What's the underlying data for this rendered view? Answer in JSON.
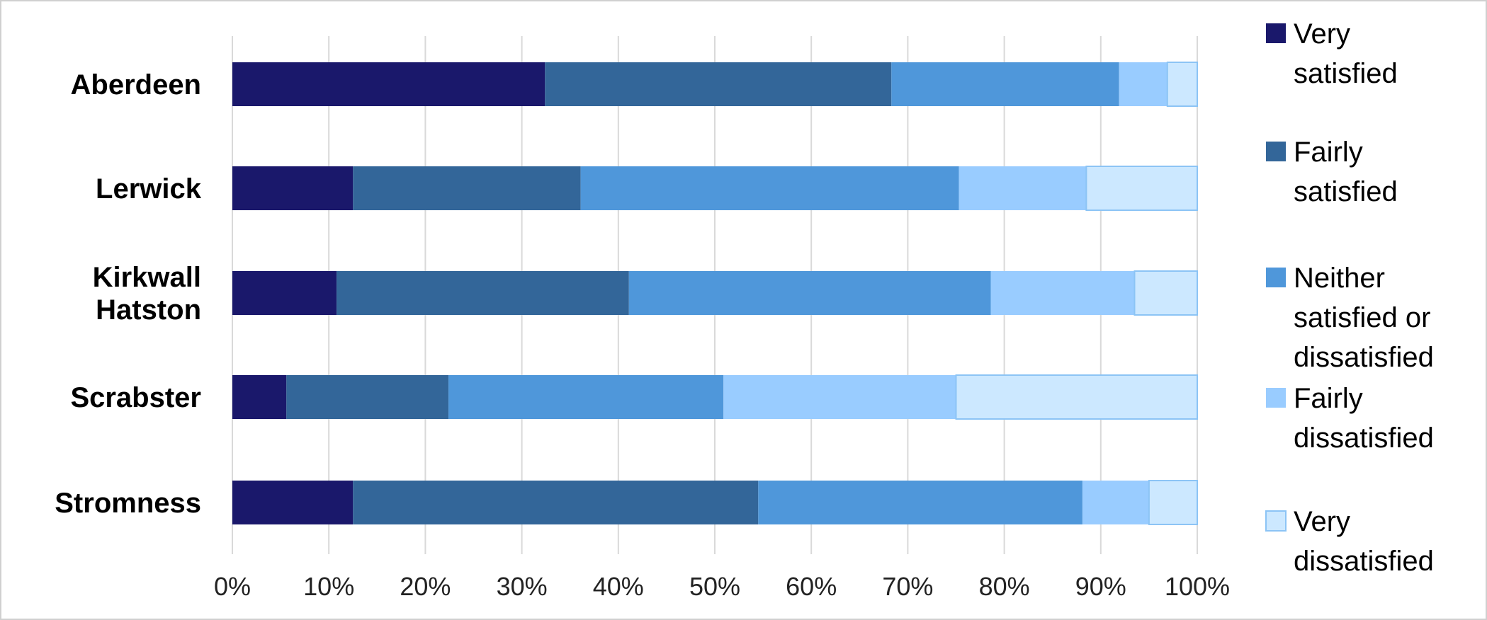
{
  "chart_data": {
    "type": "bar",
    "orientation": "horizontal",
    "stacked": "percent",
    "categories": [
      "Aberdeen",
      "Lerwick",
      "Kirkwall Hatston",
      "Scrabster",
      "Stromness"
    ],
    "category_lines": [
      [
        "Aberdeen"
      ],
      [
        "Lerwick"
      ],
      [
        "Kirkwall",
        "Hatston"
      ],
      [
        "Scrabster"
      ],
      [
        "Stromness"
      ]
    ],
    "series": [
      {
        "name": "Very satisfied",
        "legend_lines": [
          "Very",
          "satisfied"
        ],
        "color": "#1a186b",
        "values": [
          32.4,
          12.5,
          10.8,
          5.6,
          12.5
        ]
      },
      {
        "name": "Fairly satisfied",
        "legend_lines": [
          "Fairly",
          "satisfied"
        ],
        "color": "#336699",
        "values": [
          35.9,
          23.6,
          30.3,
          16.8,
          42.0
        ]
      },
      {
        "name": "Neither satisfied or dissatisfied",
        "legend_lines": [
          "Neither",
          "satisfied or",
          "dissatisfied"
        ],
        "color": "#4f97da",
        "values": [
          23.6,
          39.2,
          37.5,
          28.5,
          33.6
        ]
      },
      {
        "name": "Fairly dissatisfied",
        "legend_lines": [
          "Fairly",
          "dissatisfied"
        ],
        "color": "#99ccff",
        "values": [
          5.0,
          13.2,
          14.9,
          24.1,
          6.9
        ]
      },
      {
        "name": "Very dissatisfied",
        "legend_lines": [
          "Very",
          "dissatisfied"
        ],
        "color": "#cce8ff",
        "values": [
          3.1,
          11.5,
          6.5,
          25.0,
          5.0
        ]
      }
    ],
    "x_ticks": [
      "0%",
      "10%",
      "20%",
      "30%",
      "40%",
      "50%",
      "60%",
      "70%",
      "80%",
      "90%",
      "100%"
    ],
    "xlim": [
      0,
      100
    ],
    "grid": true,
    "legend_position": "right",
    "title": "",
    "xlabel": "",
    "ylabel": ""
  }
}
